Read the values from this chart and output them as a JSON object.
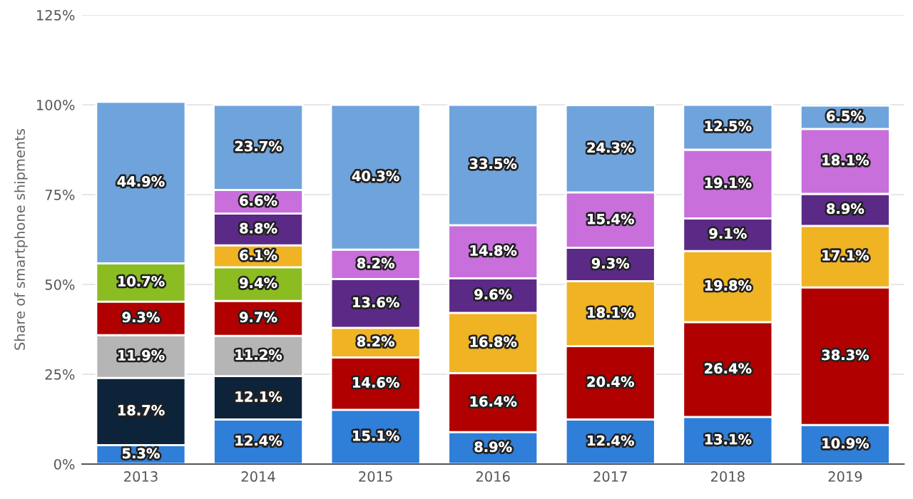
{
  "chart_data": {
    "type": "bar",
    "stacked": true,
    "ylabel": "Share of smartphone shipments",
    "categories": [
      "2013",
      "2014",
      "2015",
      "2016",
      "2017",
      "2018",
      "2019"
    ],
    "series": [
      {
        "color": "#2f7ed8",
        "values": [
          5.3,
          12.4,
          15.1,
          8.9,
          12.4,
          13.1,
          10.9
        ],
        "value_labels": [
          "5.3%",
          "12.4%",
          "15.1%",
          "8.9%",
          "12.4%",
          "13.1%",
          "10.9%"
        ]
      },
      {
        "color": "#0d233a",
        "values": [
          18.7,
          12.1,
          null,
          null,
          null,
          null,
          null
        ],
        "value_labels": [
          "18.7%",
          "12.1%",
          null,
          null,
          null,
          null,
          null
        ]
      },
      {
        "color": "#b5b5b5",
        "values": [
          11.9,
          11.2,
          null,
          null,
          null,
          null,
          null
        ],
        "value_labels": [
          "11.9%",
          "11.2%",
          null,
          null,
          null,
          null,
          null
        ]
      },
      {
        "color": "#b00000",
        "values": [
          9.3,
          9.7,
          14.6,
          16.4,
          20.4,
          26.4,
          38.3
        ],
        "value_labels": [
          "9.3%",
          "9.7%",
          "14.6%",
          "16.4%",
          "20.4%",
          "26.4%",
          "38.3%"
        ]
      },
      {
        "color": "#8bbc21",
        "values": [
          10.7,
          9.4,
          null,
          null,
          null,
          null,
          null
        ],
        "value_labels": [
          "10.7%",
          "9.4%",
          null,
          null,
          null,
          null,
          null
        ]
      },
      {
        "color": "#f0b323",
        "values": [
          null,
          6.1,
          8.2,
          16.8,
          18.1,
          19.8,
          17.1
        ],
        "value_labels": [
          null,
          "6.1%",
          "8.2%",
          "16.8%",
          "18.1%",
          "19.8%",
          "17.1%"
        ]
      },
      {
        "color": "#5b2a86",
        "values": [
          null,
          8.8,
          13.6,
          9.6,
          9.3,
          9.1,
          8.9
        ],
        "value_labels": [
          null,
          "8.8%",
          "13.6%",
          "9.6%",
          "9.3%",
          "9.1%",
          "8.9%"
        ]
      },
      {
        "color": "#c86fdc",
        "values": [
          null,
          6.6,
          8.2,
          14.8,
          15.4,
          19.1,
          18.1
        ],
        "value_labels": [
          null,
          "6.6%",
          "8.2%",
          "14.8%",
          "15.4%",
          "19.1%",
          "18.1%"
        ]
      },
      {
        "color": "#6fa3dc",
        "values": [
          44.9,
          23.7,
          40.3,
          33.5,
          24.3,
          12.5,
          6.5
        ],
        "value_labels": [
          "44.9%",
          "23.7%",
          "40.3%",
          "33.5%",
          "24.3%",
          "12.5%",
          "6.5%"
        ]
      }
    ],
    "ylim": [
      0,
      125
    ],
    "yticks": [
      {
        "value": 0,
        "label": "0%"
      },
      {
        "value": 25,
        "label": "25%"
      },
      {
        "value": 50,
        "label": "50%"
      },
      {
        "value": 75,
        "label": "75%"
      },
      {
        "value": 100,
        "label": "100%"
      },
      {
        "value": 125,
        "label": "125%"
      }
    ],
    "grid": "y"
  }
}
